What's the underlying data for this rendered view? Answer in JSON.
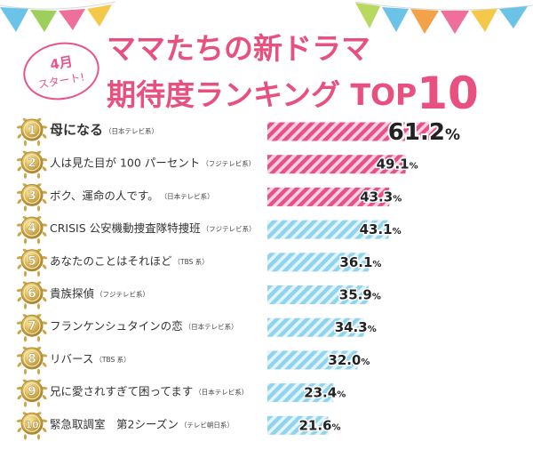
{
  "header": {
    "badge_line1": "4月",
    "badge_line2": "スタート!",
    "title_line1": "ママたちの新ドラマ",
    "title_line2_main": "期待度ランキング TOP",
    "title_line2_num": "10"
  },
  "colors": {
    "title": "#e8507f",
    "top3_bar": "#e8508a",
    "other_bar": "#8fd3ee",
    "medal": "#c9a84a"
  },
  "chart_data": {
    "type": "bar",
    "orientation": "horizontal",
    "title": "ママたちの新ドラマ期待度ランキング TOP10",
    "unit": "%",
    "xlim": [
      0,
      61.2
    ],
    "series": [
      {
        "values": [
          61.2,
          49.1,
          43.3,
          43.1,
          36.1,
          35.9,
          34.3,
          32.0,
          23.4,
          21.6
        ]
      }
    ],
    "items": [
      {
        "rank": "1",
        "title": "母になる",
        "network": "（日本テレビ系）",
        "value": 61.2,
        "value_int": "61.2",
        "highlight": true
      },
      {
        "rank": "2",
        "title": "人は見た目が 100 パーセント",
        "network": "（フジテレビ系）",
        "value": 49.1,
        "value_int": "49.1",
        "highlight": true
      },
      {
        "rank": "3",
        "title": "ボク、運命の人です。",
        "network": "（日本テレビ系）",
        "value": 43.3,
        "value_int": "43.3",
        "highlight": true
      },
      {
        "rank": "4",
        "title": "CRISIS 公安機動捜査隊特捜班",
        "network": "（フジテレビ系）",
        "value": 43.1,
        "value_int": "43.1",
        "highlight": false
      },
      {
        "rank": "5",
        "title": "あなたのことはそれほど",
        "network": "（TBS 系）",
        "value": 36.1,
        "value_int": "36.1",
        "highlight": false
      },
      {
        "rank": "6",
        "title": "貴族探偵",
        "network": "（フジテレビ系）",
        "value": 35.9,
        "value_int": "35.9",
        "highlight": false
      },
      {
        "rank": "7",
        "title": "フランケンシュタインの恋",
        "network": "（日本テレビ系）",
        "value": 34.3,
        "value_int": "34.3",
        "highlight": false
      },
      {
        "rank": "8",
        "title": "リバース",
        "network": "（TBS 系）",
        "value": 32.0,
        "value_int": "32.0",
        "highlight": false
      },
      {
        "rank": "9",
        "title": "兄に愛されすぎて困ってます",
        "network": "（日本テレビ系）",
        "value": 23.4,
        "value_int": "23.4",
        "highlight": false
      },
      {
        "rank": "10",
        "title": "緊急取調室　第2シーズン",
        "network": "（テレビ朝日系）",
        "value": 21.6,
        "value_int": "21.6",
        "highlight": false
      }
    ]
  }
}
